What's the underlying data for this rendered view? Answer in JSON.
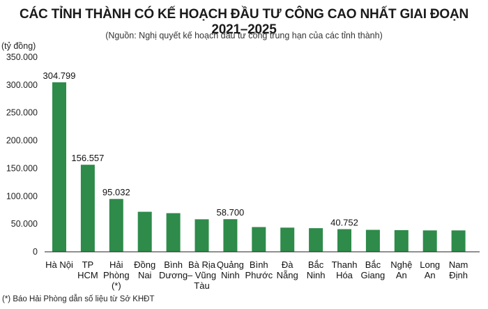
{
  "chart_data": {
    "type": "bar",
    "title": "CÁC TỈNH THÀNH CÓ KẾ HOẠCH ĐẦU TƯ CÔNG CAO NHẤT GIAI ĐOẠN 2021–2025",
    "subtitle": "(Nguồn: Nghị quyết kế hoạch đầu tư công trung hạn của các tỉnh thành)",
    "ylabel": "(tỷ đồng)",
    "xlabel": "",
    "ylim": [
      0,
      350000
    ],
    "yticks": [
      0,
      50000,
      100000,
      150000,
      200000,
      250000,
      300000,
      350000
    ],
    "ytick_labels": [
      "0",
      "50.000",
      "100.000",
      "150.000",
      "200.000",
      "250.000",
      "300.000",
      "350.000"
    ],
    "grid": false,
    "bar_color": "#2e8b4a",
    "categories": [
      [
        "Hà Nội"
      ],
      [
        "TP",
        "HCM"
      ],
      [
        "Hải",
        "Phòng",
        "(*)"
      ],
      [
        "Đồng",
        "Nai"
      ],
      [
        "Bình",
        "Dương"
      ],
      [
        "Bà Rịa",
        "– Vũng",
        "Tàu"
      ],
      [
        "Quảng",
        "Ninh"
      ],
      [
        "Bình",
        "Phước"
      ],
      [
        "Đà",
        "Nẵng"
      ],
      [
        "Bắc",
        "Ninh"
      ],
      [
        "Thanh",
        "Hóa"
      ],
      [
        "Bắc",
        "Giang"
      ],
      [
        "Nghệ",
        "An"
      ],
      [
        "Long",
        "An"
      ],
      [
        "Nam",
        "Định"
      ]
    ],
    "values": [
      304799,
      156557,
      95032,
      72000,
      69500,
      58500,
      58700,
      44500,
      43500,
      42500,
      40752,
      39500,
      39000,
      38500,
      38500
    ],
    "data_labels": [
      "304.799",
      "156.557",
      "95.032",
      "",
      "",
      "",
      "58.700",
      "",
      "",
      "",
      "40.752",
      "",
      "",
      "",
      ""
    ]
  },
  "footnote": "(*) Báo Hải Phòng dẫn số liệu từ Sở KHĐT"
}
